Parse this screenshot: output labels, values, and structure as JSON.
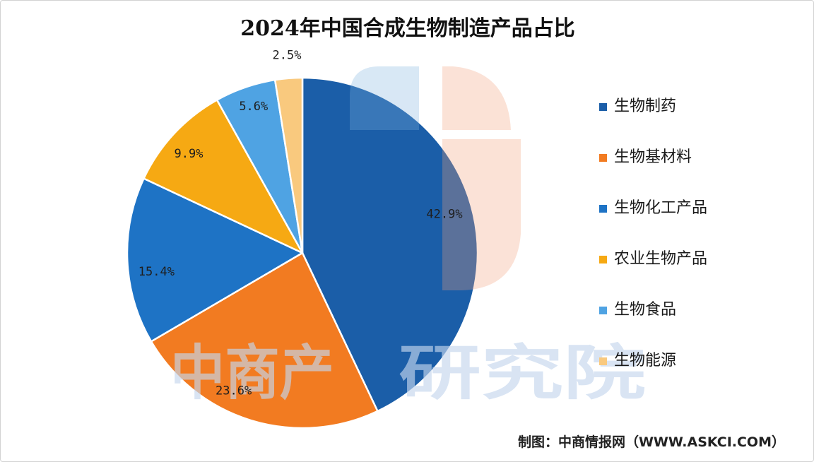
{
  "chart_data": {
    "type": "pie",
    "title": "2024年中国合成生物制造产品占比",
    "categories": [
      "生物制药",
      "生物基材料",
      "生物化工产品",
      "农业生物产品",
      "生物食品",
      "生物能源"
    ],
    "values": [
      42.9,
      23.6,
      15.4,
      9.9,
      5.6,
      2.5
    ],
    "unit": "%",
    "colors": [
      "#1B5EA8",
      "#F27B21",
      "#1E73C5",
      "#F6A913",
      "#4FA3E3",
      "#F9C97E"
    ],
    "legend_position": "right"
  },
  "source": "制图：中商情报网（WWW.ASKCI.COM）",
  "watermark": {
    "left": "中商产",
    "right": "研究院",
    "logo_icon": "company-logo-icon",
    "colors": [
      "#7FB2DF",
      "#F2A07A"
    ]
  }
}
